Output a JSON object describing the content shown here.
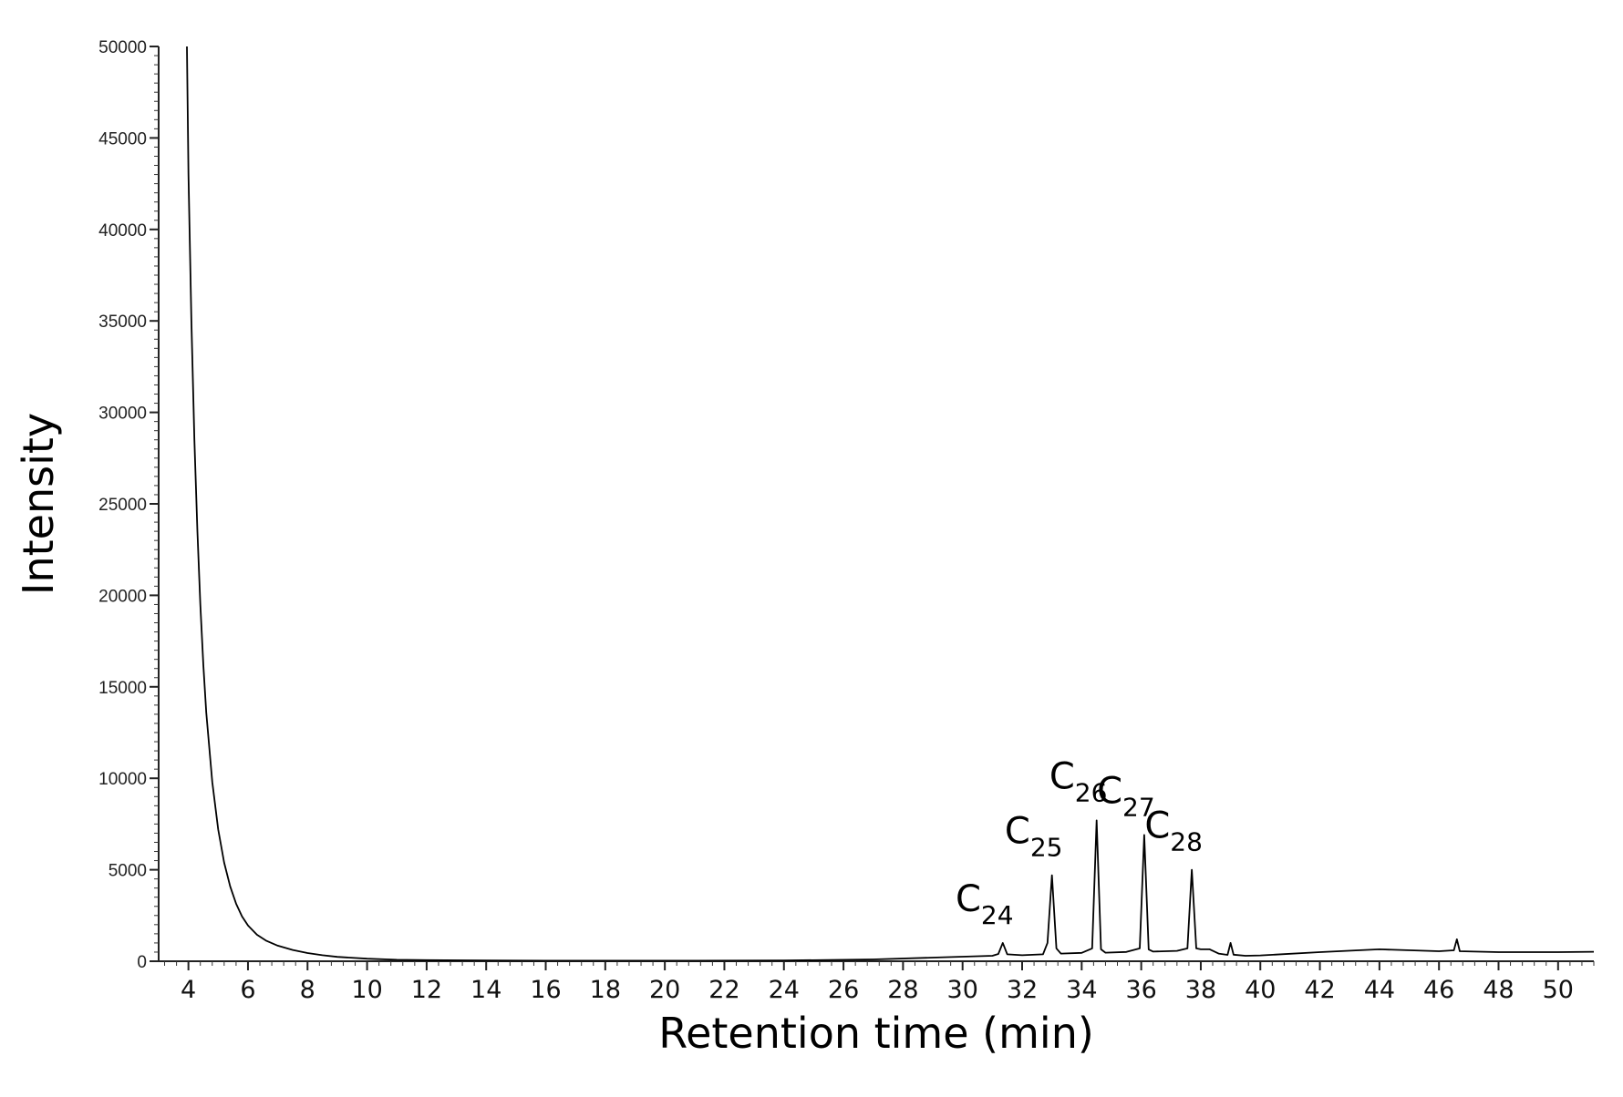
{
  "chart_data": {
    "type": "line",
    "title": "",
    "xlabel": "Retention time (min)",
    "ylabel": "Intensity",
    "xlim": [
      3.0,
      51.2
    ],
    "ylim": [
      0,
      50000
    ],
    "xticks": [
      4,
      6,
      8,
      10,
      12,
      14,
      16,
      18,
      20,
      22,
      24,
      26,
      28,
      30,
      32,
      34,
      36,
      38,
      40,
      42,
      44,
      46,
      48,
      50
    ],
    "yticks": [
      0,
      5000,
      10000,
      15000,
      20000,
      25000,
      30000,
      35000,
      40000,
      45000,
      50000
    ],
    "grid": false,
    "color": "#000000",
    "series": [
      {
        "x": [
          3.95,
          4.0,
          4.1,
          4.2,
          4.3,
          4.4,
          4.5,
          4.6,
          4.8,
          5.0,
          5.2,
          5.4,
          5.6,
          5.8,
          6.0,
          6.3,
          6.6,
          7.0,
          7.5,
          8.0,
          8.5,
          9.0,
          10.0,
          11.0,
          12.0,
          14.0,
          16.0,
          20.0,
          24.0,
          27.0,
          29.0,
          30.0,
          31.0,
          31.2,
          31.35,
          31.5,
          32.0,
          32.7,
          32.85,
          33.0,
          33.15,
          33.3,
          34.0,
          34.35,
          34.5,
          34.65,
          34.8,
          35.5,
          35.95,
          36.1,
          36.25,
          36.4,
          37.2,
          37.55,
          37.7,
          37.85,
          38.0,
          38.3,
          38.6,
          38.9,
          39.0,
          39.1,
          39.5,
          40.0,
          42.0,
          44.0,
          46.0,
          46.5,
          46.6,
          46.7,
          48.0,
          50.0,
          51.2
        ],
        "y": [
          50000,
          43000,
          35000,
          28500,
          23500,
          19500,
          16200,
          13600,
          9800,
          7200,
          5400,
          4100,
          3150,
          2450,
          1950,
          1450,
          1130,
          850,
          620,
          450,
          330,
          240,
          140,
          80,
          60,
          40,
          30,
          30,
          40,
          100,
          200,
          250,
          300,
          400,
          1000,
          380,
          330,
          380,
          1000,
          4700,
          700,
          420,
          460,
          700,
          7700,
          650,
          470,
          510,
          700,
          6900,
          640,
          530,
          570,
          700,
          5000,
          700,
          650,
          650,
          420,
          350,
          1000,
          360,
          300,
          320,
          500,
          650,
          550,
          600,
          1200,
          550,
          500,
          500,
          520
        ]
      }
    ],
    "annotations": [
      {
        "base": "C",
        "sub": "24",
        "x": 31.35,
        "y": 1000
      },
      {
        "base": "C",
        "sub": "25",
        "x": 33.0,
        "y": 4700
      },
      {
        "base": "C",
        "sub": "26",
        "x": 34.5,
        "y": 7700
      },
      {
        "base": "C",
        "sub": "27",
        "x": 36.1,
        "y": 6900
      },
      {
        "base": "C",
        "sub": "28",
        "x": 37.7,
        "y": 5000
      }
    ]
  }
}
